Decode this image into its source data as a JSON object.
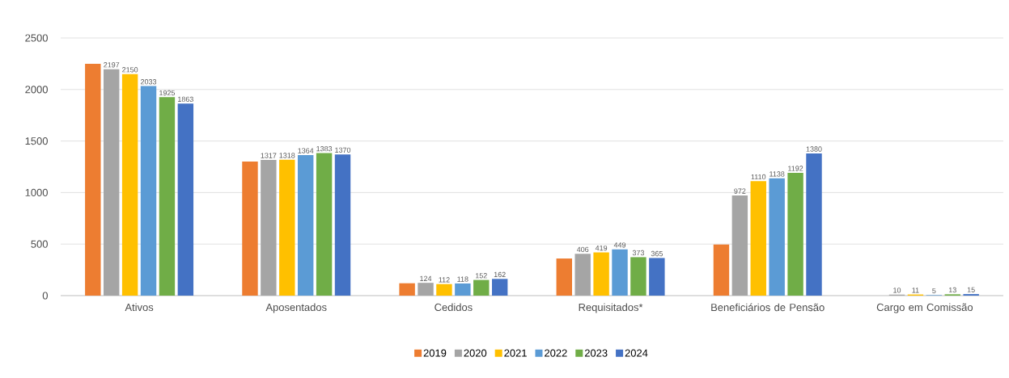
{
  "chart_data": {
    "type": "bar",
    "categories": [
      "Ativos",
      "Aposentados",
      "Cedidos",
      "Requisitados*",
      "Beneficiários de Pensão",
      "Cargo em Comissão"
    ],
    "series": [
      {
        "name": "2019",
        "color": "#ed7d31",
        "values": [
          2250,
          1300,
          120,
          360,
          495,
          null
        ],
        "value_labels": [
          null,
          null,
          null,
          null,
          null,
          null
        ]
      },
      {
        "name": "2020",
        "color": "#a5a5a5",
        "values": [
          2197,
          1317,
          124,
          406,
          972,
          10
        ],
        "value_labels": [
          "2197",
          "1317",
          "124",
          "406",
          "972",
          "10"
        ]
      },
      {
        "name": "2021",
        "color": "#ffc000",
        "values": [
          2150,
          1318,
          112,
          419,
          1110,
          11
        ],
        "value_labels": [
          "2150",
          "1318",
          "112",
          "419",
          "1110",
          "11"
        ]
      },
      {
        "name": "2022",
        "color": "#5b9bd5",
        "values": [
          2033,
          1364,
          118,
          449,
          1138,
          5
        ],
        "value_labels": [
          "2033",
          "1364",
          "118",
          "449",
          "1138",
          "5"
        ]
      },
      {
        "name": "2023",
        "color": "#70ad47",
        "values": [
          1925,
          1383,
          152,
          373,
          1192,
          13
        ],
        "value_labels": [
          "1925",
          "1383",
          "152",
          "373",
          "1192",
          "13"
        ]
      },
      {
        "name": "2024",
        "color": "#4472c4",
        "values": [
          1863,
          1370,
          162,
          365,
          1380,
          15
        ],
        "value_labels": [
          "1863",
          "1370",
          "162",
          "365",
          "1380",
          "15"
        ]
      }
    ],
    "ylim": [
      0,
      2500
    ],
    "yticks": [
      0,
      500,
      1000,
      1500,
      2000,
      2500
    ],
    "grid": "y",
    "legend": "bottom"
  }
}
